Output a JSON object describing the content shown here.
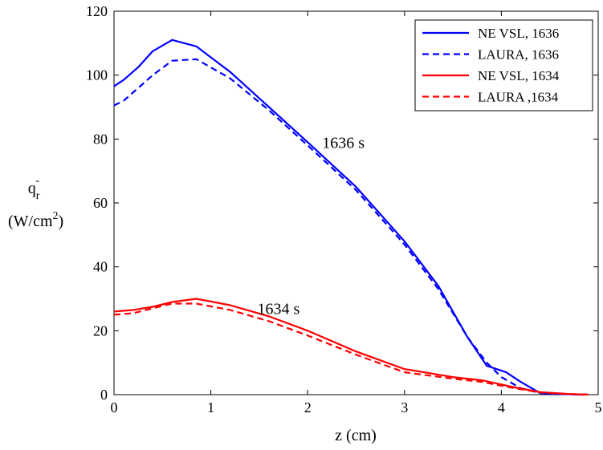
{
  "chart_data": {
    "type": "line",
    "xlabel": "z (cm)",
    "ylabel": {
      "line1_base": "q",
      "line1_sub": "r",
      "line1_sup": "-",
      "line2_base": "(W/cm",
      "line2_sup": "2",
      "line2_end": ")"
    },
    "xlim": [
      0,
      5
    ],
    "ylim": [
      0,
      120
    ],
    "xticks": [
      "0",
      "1",
      "2",
      "3",
      "4",
      "5"
    ],
    "yticks": [
      "0",
      "20",
      "40",
      "60",
      "80",
      "100",
      "120"
    ],
    "xtick_values": [
      0,
      1,
      2,
      3,
      4,
      5
    ],
    "ytick_values": [
      0,
      20,
      40,
      60,
      80,
      100,
      120
    ],
    "grid": false,
    "legend_position": "top-right",
    "series": [
      {
        "name": "NE VSL, 1636",
        "color": "#0000ff",
        "dash": "solid",
        "x": [
          0,
          0.1,
          0.25,
          0.4,
          0.6,
          0.85,
          1.2,
          1.6,
          2.0,
          2.5,
          3.0,
          3.35,
          3.65,
          3.85,
          4.05,
          4.2,
          4.4,
          4.6,
          4.85
        ],
        "y": [
          96.5,
          98.5,
          102.5,
          107.5,
          111,
          109,
          101,
          90,
          79,
          65,
          48,
          34,
          18,
          9,
          7,
          4,
          0.5,
          0.2,
          0
        ]
      },
      {
        "name": "LAURA, 1636",
        "color": "#0000ff",
        "dash": "dashed",
        "x": [
          0,
          0.1,
          0.25,
          0.4,
          0.6,
          0.85,
          1.2,
          1.6,
          2.0,
          2.5,
          3.0,
          3.35,
          3.65,
          3.85,
          4.0,
          4.2,
          4.4,
          4.6,
          4.85
        ],
        "y": [
          90.5,
          92,
          96,
          100,
          104.5,
          105,
          99,
          89,
          78,
          64,
          47,
          33,
          18,
          10,
          5.5,
          2,
          0.5,
          0.2,
          0
        ]
      },
      {
        "name": "NE VSL, 1634",
        "color": "#ff0000",
        "dash": "solid",
        "x": [
          0,
          0.2,
          0.4,
          0.6,
          0.85,
          1.2,
          1.6,
          2.0,
          2.5,
          3.0,
          3.5,
          3.8,
          4.1,
          4.4,
          4.7,
          4.9
        ],
        "y": [
          26,
          26.5,
          27.5,
          29,
          30,
          28,
          24.5,
          20,
          13.5,
          8,
          5.5,
          4.5,
          2.5,
          0.8,
          0.2,
          0
        ]
      },
      {
        "name": "LAURA ,1634",
        "color": "#ff0000",
        "dash": "dashed",
        "x": [
          0,
          0.2,
          0.4,
          0.6,
          0.85,
          1.2,
          1.6,
          2.0,
          2.5,
          3.0,
          3.5,
          3.8,
          4.1,
          4.4,
          4.7,
          4.9
        ],
        "y": [
          25,
          25.5,
          27,
          28.5,
          28.5,
          26.5,
          23,
          18.5,
          12.5,
          7,
          5,
          4,
          2.2,
          0.7,
          0.2,
          0
        ]
      }
    ],
    "annotations": [
      {
        "text": "1636 s",
        "x": 2.15,
        "y": 79
      },
      {
        "text": "1634 s",
        "x": 1.48,
        "y": 27
      }
    ]
  }
}
